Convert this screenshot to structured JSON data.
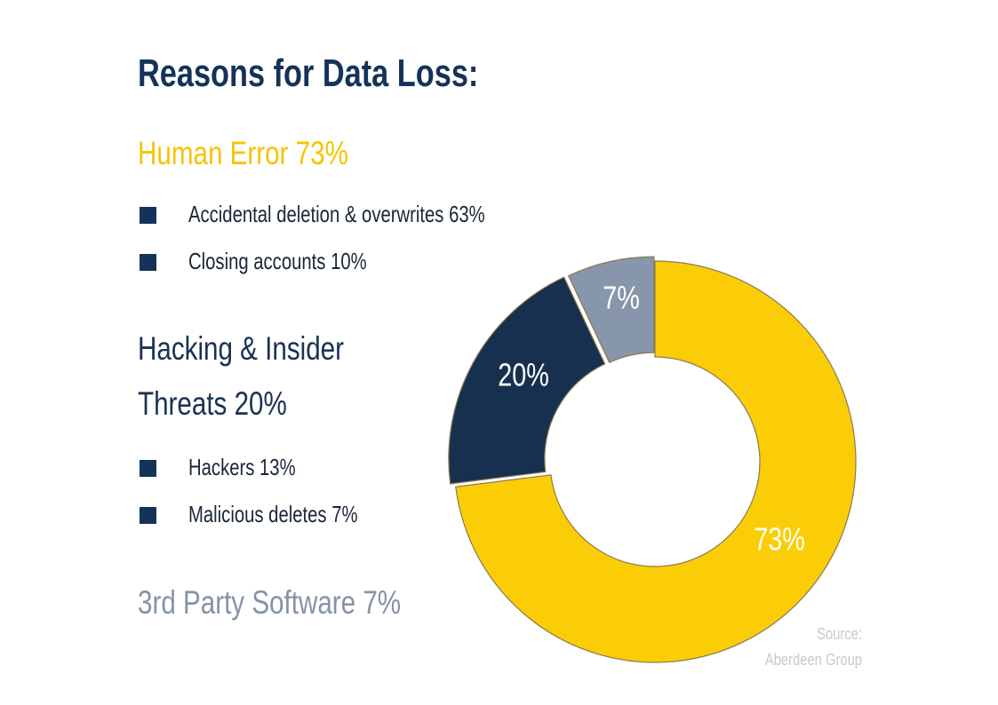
{
  "title": "Reasons for Data Loss:",
  "categories": {
    "human_error": {
      "label": "Human Error 73%",
      "items": [
        "Accidental deletion & overwrites 63%",
        "Closing accounts 10%"
      ]
    },
    "hacking": {
      "label_line1": "Hacking & Insider",
      "label_line2": "Threats 20%",
      "items": [
        "Hackers 13%",
        "Malicious deletes 7%"
      ]
    },
    "third_party": {
      "label": "3rd Party Software 7%"
    }
  },
  "source": {
    "line1": "Source:",
    "line2": "Aberdeen Group"
  },
  "colors": {
    "title": "#15325a",
    "human_error": "#f5c400",
    "hacking": "#1a3152",
    "third_party": "#8593a8",
    "bullet": "#15325a"
  },
  "chart_data": {
    "type": "pie",
    "donut": true,
    "labels": [
      "Human Error",
      "Hacking & Insider Threats",
      "3rd Party Software"
    ],
    "values": [
      73,
      20,
      7
    ],
    "value_labels": [
      "73%",
      "20%",
      "7%"
    ],
    "colors": [
      "#fbcd07",
      "#17304f",
      "#8796aa"
    ],
    "legend": "none"
  }
}
